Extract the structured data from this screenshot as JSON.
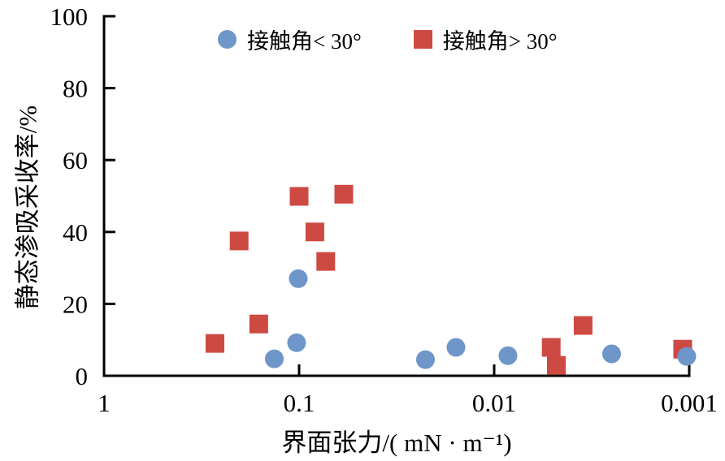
{
  "chart_data": {
    "type": "scatter",
    "title": "",
    "xlabel": "界面张力/( mN · m⁻¹)",
    "ylabel": "静态渗吸采收率/%",
    "x_scale": "log10-reversed",
    "xlim": [
      1,
      0.001
    ],
    "ylim": [
      0,
      100
    ],
    "grid": false,
    "legend_position": "top-center-inside",
    "axis_color": "#000000",
    "x_ticks": [
      1,
      0.1,
      0.01,
      0.001
    ],
    "x_tick_labels": [
      "1",
      "0.1",
      "0.01",
      "0.001"
    ],
    "y_ticks": [
      0,
      20,
      40,
      60,
      80,
      100
    ],
    "y_tick_labels": [
      "0",
      "20",
      "40",
      "60",
      "80",
      "100"
    ],
    "series": [
      {
        "name": "接触角< 30°",
        "marker": "circle",
        "color": "#6e96c8",
        "points": [
          [
            0.134,
            4.7
          ],
          [
            0.103,
            9.2
          ],
          [
            0.101,
            27.0
          ],
          [
            0.0225,
            4.5
          ],
          [
            0.0157,
            7.9
          ],
          [
            0.0085,
            5.6
          ],
          [
            0.0025,
            6.1
          ],
          [
            0.00103,
            5.4
          ]
        ]
      },
      {
        "name": "接触角> 30°",
        "marker": "square",
        "color": "#cd4a43",
        "points": [
          [
            0.27,
            9.0
          ],
          [
            0.203,
            37.5
          ],
          [
            0.161,
            14.4
          ],
          [
            0.1,
            49.9
          ],
          [
            0.083,
            40.0
          ],
          [
            0.073,
            31.8
          ],
          [
            0.059,
            50.5
          ],
          [
            0.0051,
            7.9
          ],
          [
            0.0048,
            2.9
          ],
          [
            0.0035,
            14.0
          ],
          [
            0.00108,
            7.4
          ]
        ]
      }
    ]
  }
}
